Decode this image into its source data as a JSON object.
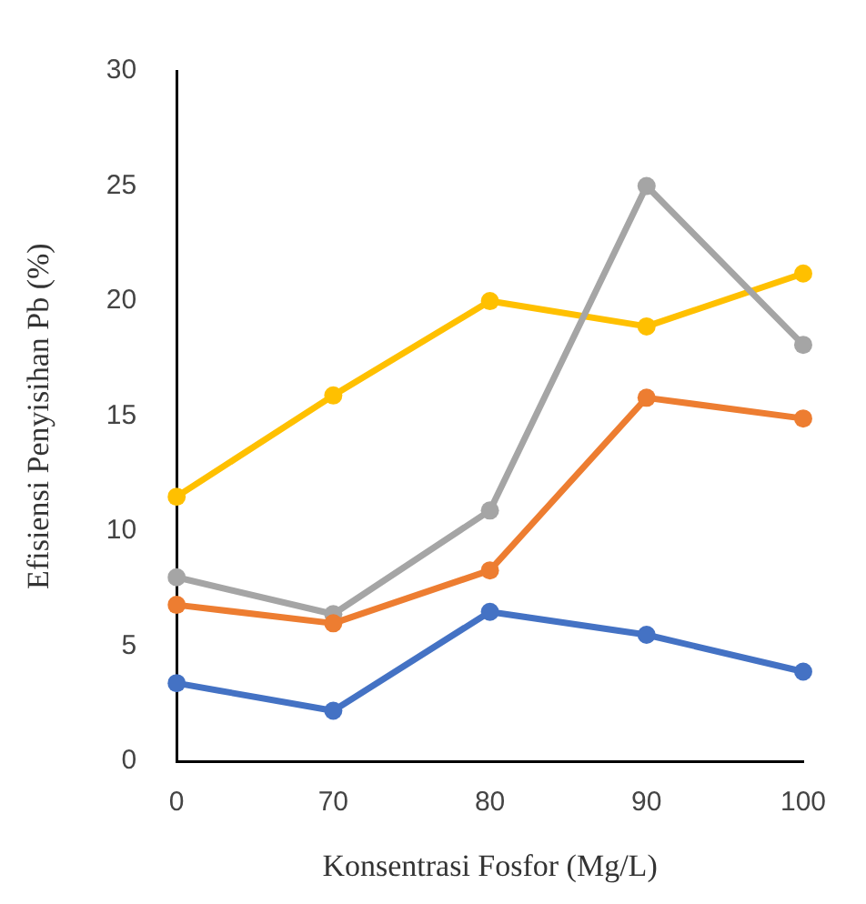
{
  "chart_data": {
    "type": "line",
    "xlabel": "Konsentrasi Fosfor (Mg/L)",
    "ylabel": "Efisiensi Penyisihan Pb (%)",
    "categories": [
      "0",
      "70",
      "80",
      "90",
      "100"
    ],
    "series": [
      {
        "color": "#4472c4",
        "values": [
          3.4,
          2.2,
          6.5,
          5.5,
          3.9
        ]
      },
      {
        "color": "#ed7d31",
        "values": [
          6.8,
          6.0,
          8.3,
          15.8,
          14.9
        ]
      },
      {
        "color": "#a5a5a5",
        "values": [
          8.0,
          6.4,
          10.9,
          25.0,
          18.1
        ]
      },
      {
        "color": "#ffc000",
        "values": [
          11.5,
          15.9,
          20.0,
          18.9,
          21.2
        ]
      }
    ],
    "ylim": [
      0,
      30
    ],
    "yticks": [
      0,
      5,
      10,
      15,
      20,
      25,
      30
    ],
    "grid": false,
    "legend": false,
    "marker": "circle",
    "line_style": "solid"
  }
}
